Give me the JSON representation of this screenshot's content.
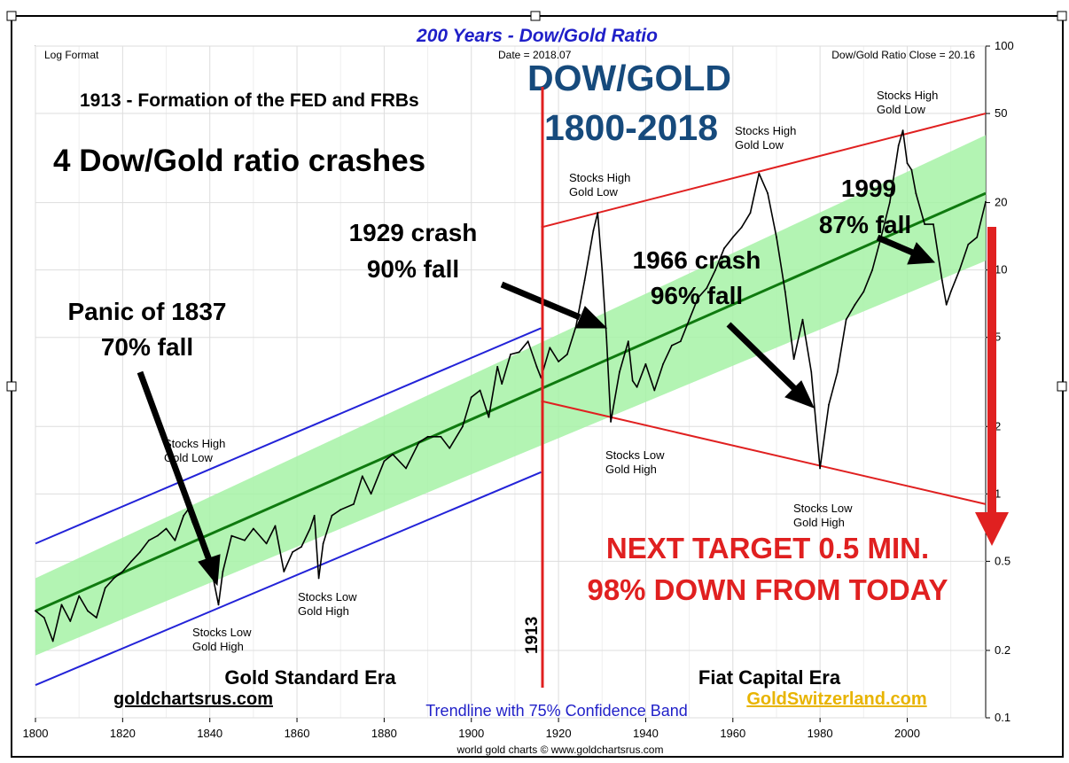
{
  "chart_data": {
    "type": "line",
    "title": "200 Years - Dow/Gold Ratio",
    "y_scale": "log",
    "x_range": [
      1800,
      2018
    ],
    "y_range": [
      0.1,
      100
    ],
    "grid": true,
    "x_ticks": [
      "1800",
      "1820",
      "1840",
      "1860",
      "1880",
      "1900",
      "1920",
      "1940",
      "1960",
      "1980",
      "2000"
    ],
    "y_ticks": [
      "100",
      "50",
      "20",
      "10",
      "5",
      "2",
      "1",
      "0.5",
      "0.2",
      "0.1"
    ],
    "corner_labels": {
      "log_format": "Log Format",
      "date": "Date = 2018.07",
      "close": "Dow/Gold Ratio Close = 20.16"
    },
    "headline": [
      "DOW/GOLD",
      "1800-2018"
    ],
    "fed_note": "1913 - Formation of the FED and FRBs",
    "crashes_note": "4 Dow/Gold ratio crashes",
    "fed_year_label": "1913",
    "target_text": [
      "NEXT TARGET 0.5 MIN.",
      "98% DOWN FROM TODAY"
    ],
    "era_labels": {
      "gold": "Gold Standard Era",
      "fiat": "Fiat Capital Era"
    },
    "trendline_label": "Trendline with 75% Confidence Band",
    "credits": {
      "left": "goldchartsrus.com",
      "right": "GoldSwitzerland.com",
      "bottom": "world gold charts © www.goldchartsrus.com"
    },
    "crash_labels": [
      {
        "lines": [
          "Panic of 1837",
          "70% fall"
        ]
      },
      {
        "lines": [
          "1929 crash",
          "90% fall"
        ]
      },
      {
        "lines": [
          "1966 crash",
          "96% fall"
        ]
      },
      {
        "lines": [
          "1999",
          "87% fall"
        ]
      }
    ],
    "extreme_annotations": [
      {
        "year": 1835,
        "lines": [
          "Stocks High",
          "Gold Low"
        ]
      },
      {
        "year": 1842,
        "lines": [
          "Stocks Low",
          "Gold High"
        ]
      },
      {
        "year": 1865,
        "lines": [
          "Stocks Low",
          "Gold High"
        ]
      },
      {
        "year": 1929,
        "lines": [
          "Stocks High",
          "Gold Low"
        ]
      },
      {
        "year": 1932,
        "lines": [
          "Stocks Low",
          "Gold High"
        ]
      },
      {
        "year": 1966,
        "lines": [
          "Stocks High",
          "Gold Low"
        ]
      },
      {
        "year": 1980,
        "lines": [
          "Stocks Low",
          "Gold High"
        ]
      },
      {
        "year": 1999,
        "lines": [
          "Stocks High",
          "Gold Low"
        ]
      }
    ],
    "trend": {
      "x": [
        1800,
        2018
      ],
      "y": [
        0.3,
        22
      ]
    },
    "confidence_band": {
      "upper": [
        [
          1800,
          0.42
        ],
        [
          2018,
          40
        ]
      ],
      "lower": [
        [
          1800,
          0.19
        ],
        [
          2018,
          11
        ]
      ]
    },
    "gold_standard_channel": {
      "upper": [
        [
          1800,
          0.6
        ],
        [
          1916,
          5.5
        ]
      ],
      "lower": [
        [
          1800,
          0.14
        ],
        [
          1916,
          1.25
        ]
      ]
    },
    "fiat_channel": {
      "upper": [
        [
          1916,
          15.5
        ],
        [
          2018,
          50
        ]
      ],
      "lower": [
        [
          1916,
          2.6
        ],
        [
          2018,
          0.9
        ]
      ]
    },
    "series": [
      {
        "x": [
          1800,
          1802,
          1804,
          1806,
          1808,
          1810,
          1812,
          1814,
          1816,
          1818,
          1820,
          1822,
          1824,
          1826,
          1828,
          1830,
          1832,
          1834,
          1835,
          1836,
          1838,
          1840,
          1842,
          1843,
          1845,
          1848,
          1850,
          1853,
          1855,
          1857,
          1859,
          1861,
          1863,
          1864,
          1865,
          1866,
          1868,
          1870,
          1873,
          1875,
          1877,
          1880,
          1882,
          1885,
          1888,
          1890,
          1893,
          1895,
          1898,
          1900,
          1902,
          1904,
          1906,
          1907,
          1909,
          1911,
          1913,
          1915,
          1916,
          1918,
          1920,
          1922,
          1924,
          1926,
          1928,
          1929,
          1930,
          1931,
          1932,
          1934,
          1936,
          1937,
          1938,
          1940,
          1942,
          1944,
          1946,
          1948,
          1950,
          1952,
          1954,
          1956,
          1958,
          1960,
          1962,
          1964,
          1966,
          1968,
          1970,
          1972,
          1974,
          1976,
          1978,
          1980,
          1982,
          1984,
          1986,
          1988,
          1990,
          1992,
          1994,
          1996,
          1998,
          1999,
          2000,
          2001,
          2002,
          2004,
          2006,
          2008,
          2009,
          2010,
          2012,
          2014,
          2016,
          2018
        ],
        "y": [
          0.3,
          0.28,
          0.22,
          0.32,
          0.27,
          0.35,
          0.3,
          0.28,
          0.38,
          0.42,
          0.45,
          0.5,
          0.55,
          0.62,
          0.65,
          0.7,
          0.62,
          0.8,
          0.85,
          0.75,
          0.6,
          0.5,
          0.32,
          0.45,
          0.65,
          0.62,
          0.7,
          0.6,
          0.72,
          0.45,
          0.55,
          0.58,
          0.7,
          0.8,
          0.42,
          0.6,
          0.8,
          0.85,
          0.9,
          1.2,
          1.0,
          1.4,
          1.5,
          1.3,
          1.7,
          1.8,
          1.8,
          1.6,
          2.0,
          2.7,
          2.9,
          2.2,
          3.7,
          3.1,
          4.2,
          4.3,
          4.8,
          3.7,
          3.3,
          4.5,
          3.9,
          4.2,
          5.6,
          9.0,
          15.0,
          18.0,
          10.0,
          5.0,
          2.1,
          3.5,
          4.8,
          3.2,
          3.0,
          3.8,
          2.9,
          3.8,
          4.6,
          4.8,
          6.0,
          7.5,
          8.3,
          10.0,
          12.5,
          14.0,
          15.5,
          18.0,
          27.0,
          22.0,
          14.0,
          8.0,
          4.0,
          6.0,
          3.5,
          1.3,
          2.5,
          3.5,
          6.0,
          7.0,
          8.0,
          10.0,
          14.0,
          20.0,
          36.0,
          42.0,
          30.0,
          28.0,
          22.0,
          16.0,
          16.0,
          9.0,
          7.0,
          8.0,
          10.0,
          13.0,
          14.0,
          20.16
        ]
      }
    ]
  }
}
